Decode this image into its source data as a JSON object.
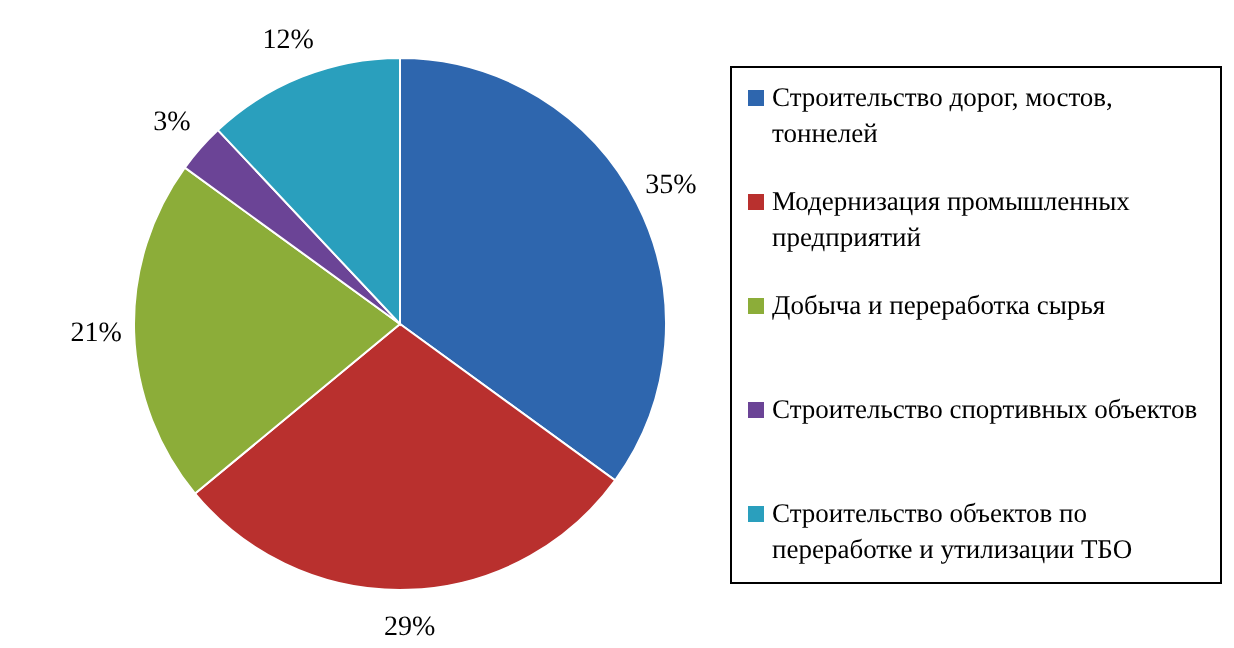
{
  "chart_data": {
    "type": "pie",
    "categories": [
      "Строительство дорог, мостов, тоннелей",
      "Модернизация промышленных предприятий",
      "Добыча и переработка сырья",
      "Строительство спортивных объектов",
      "Строительство объектов по переработке и утилизации ТБО"
    ],
    "values": [
      35,
      29,
      21,
      3,
      12
    ],
    "value_labels": [
      "35%",
      "29%",
      "21%",
      "3%",
      "12%"
    ],
    "colors": [
      "#2e66ae",
      "#b9302e",
      "#8cad39",
      "#6b4496",
      "#2a9fbd"
    ],
    "legend": "right"
  }
}
